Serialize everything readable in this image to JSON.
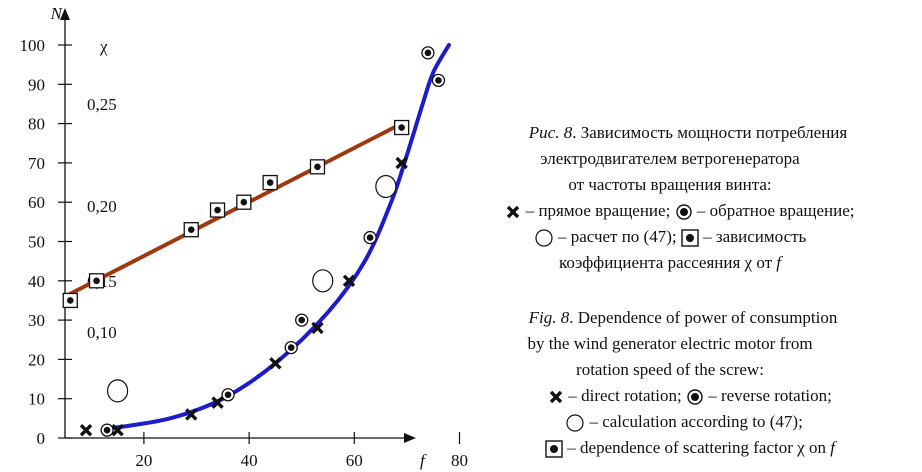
{
  "chart_data": {
    "type": "scatter",
    "y_axis_title": "N",
    "x_axis_title": "f",
    "secondary_axis_title": "χ",
    "xlim": [
      5,
      80
    ],
    "ylim": [
      0,
      100
    ],
    "x_ticks": [
      "20",
      "40",
      "60",
      "80"
    ],
    "y_ticks": [
      "0",
      "10",
      "20",
      "30",
      "40",
      "50",
      "60",
      "70",
      "80",
      "90",
      "100"
    ],
    "secondary_ticks": [
      "0,10",
      "0,15",
      "0,20",
      "0,25"
    ],
    "series": [
      {
        "marker": "cross",
        "points": [
          [
            9,
            2
          ],
          [
            15,
            2
          ],
          [
            29,
            6
          ],
          [
            34,
            9
          ],
          [
            45,
            19
          ],
          [
            53,
            28
          ],
          [
            59,
            40
          ],
          [
            69,
            70
          ]
        ]
      },
      {
        "marker": "dotted-circle",
        "points": [
          [
            13,
            2
          ],
          [
            36,
            11
          ],
          [
            48,
            23
          ],
          [
            50,
            30
          ],
          [
            63,
            51
          ],
          [
            74,
            98
          ],
          [
            76,
            91
          ]
        ]
      },
      {
        "marker": "open-circle",
        "points": [
          [
            15,
            12
          ],
          [
            54,
            40
          ],
          [
            66,
            64
          ]
        ]
      },
      {
        "marker": "boxed-dot",
        "points": [
          [
            6,
            35
          ],
          [
            11,
            40
          ],
          [
            29,
            53
          ],
          [
            34,
            58
          ],
          [
            39,
            60
          ],
          [
            44,
            65
          ],
          [
            53,
            69
          ],
          [
            69,
            79
          ]
        ]
      }
    ],
    "fits": [
      {
        "color": "#1c1ccc",
        "points": [
          [
            14,
            2.5
          ],
          [
            25,
            5
          ],
          [
            35,
            10
          ],
          [
            45,
            19
          ],
          [
            55,
            32
          ],
          [
            62,
            45
          ],
          [
            67,
            60
          ],
          [
            70,
            72
          ],
          [
            73,
            85
          ],
          [
            75,
            93
          ],
          [
            78,
            100
          ]
        ]
      },
      {
        "color": "#a0370f",
        "points": [
          [
            5,
            36
          ],
          [
            69,
            80
          ]
        ]
      }
    ]
  },
  "caption_ru": {
    "fig_label": "Рис. 8",
    "title": [
      ". Зависимость мощности потребления",
      "электродвигателем ветрогенератора",
      "от частоты вращения винта:"
    ],
    "direct": " – прямое вращение; ",
    "reverse": " – обратное вращение;",
    "calc": " – расчет по (47); ",
    "dependence": " – зависимость",
    "dependence2_pre": "коэффициента рассеяния χ от ",
    "dependence2_var": "f"
  },
  "caption_en": {
    "fig_label": "Fig. 8",
    "title": [
      ". Dependence of power of consumption",
      "by the wind generator electric motor from",
      "rotation speed of the screw:"
    ],
    "direct": " – direct rotation; ",
    "reverse": " – reverse  rotation;",
    "calc": " – calculation according to (47);",
    "dependence_pre": " – dependence of scattering factor χ on ",
    "dependence_var": "f"
  },
  "colors": {
    "blue_fit": "#1c1ccc",
    "brown_fit": "#a0370f"
  }
}
